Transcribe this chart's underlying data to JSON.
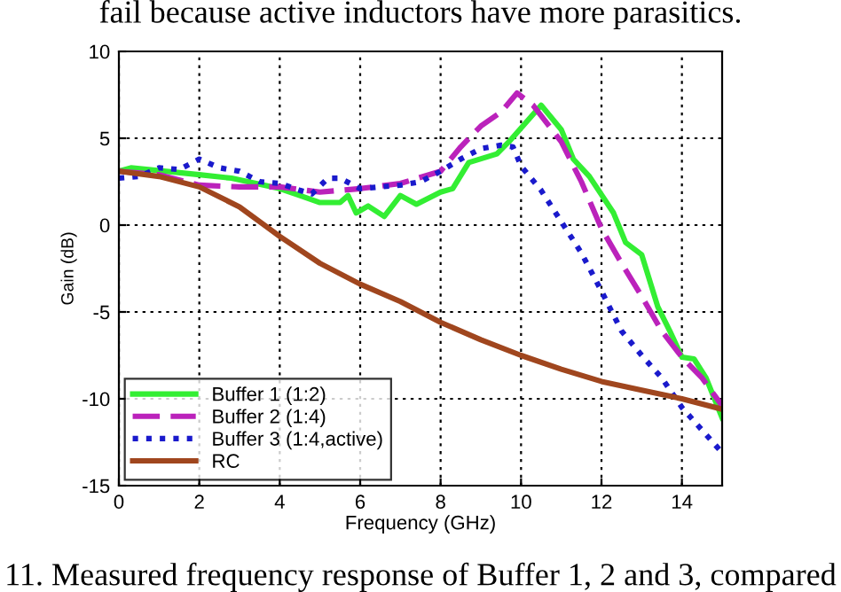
{
  "chart_data": {
    "type": "line",
    "xlabel": "Frequency (GHz)",
    "ylabel": "Gain (dB)",
    "xlim": [
      0,
      15
    ],
    "ylim": [
      -15,
      10
    ],
    "xticks": [
      0,
      2,
      4,
      6,
      8,
      10,
      12,
      14
    ],
    "yticks": [
      -15,
      -10,
      -5,
      0,
      5,
      10
    ],
    "grid": true,
    "legend": "bottom left",
    "annotations": [
      "fail because active inductors have more parasitics.",
      "11. Measured frequency response of Buffer 1, 2 and 3, compared"
    ],
    "series": [
      {
        "name": "Buffer 1 (1:2)",
        "color": "#33ee33",
        "line_style": "solid",
        "x": [
          0,
          0.3,
          2,
          2.8,
          4,
          4.5,
          5,
          5.5,
          5.7,
          5.9,
          6.2,
          6.6,
          7,
          7.4,
          8,
          8.3,
          8.7,
          9.4,
          9.7,
          10.5,
          11,
          11.3,
          11.7,
          12.3,
          12.6,
          13,
          13.4,
          13.7,
          14,
          14.3,
          14.6,
          15
        ],
        "values": [
          3.1,
          3.3,
          2.9,
          2.7,
          2.1,
          1.7,
          1.3,
          1.3,
          1.7,
          0.7,
          1.1,
          0.5,
          1.7,
          1.2,
          1.9,
          2.1,
          3.6,
          4.1,
          4.8,
          6.9,
          5.5,
          3.8,
          2.8,
          0.7,
          -1.0,
          -1.7,
          -4.7,
          -6.1,
          -7.6,
          -7.7,
          -8.8,
          -11.1
        ]
      },
      {
        "name": "Buffer 2 (1:4)",
        "color": "#bb22bb",
        "line_style": "dashed",
        "x": [
          0,
          1,
          2,
          3,
          4,
          5,
          6,
          7,
          8,
          8.5,
          9,
          9.5,
          9.9,
          10.3,
          11,
          11.5,
          12,
          12.5,
          13,
          13.5,
          14,
          14.5,
          15
        ],
        "values": [
          3.1,
          2.9,
          2.3,
          2.2,
          2.2,
          1.9,
          2.1,
          2.4,
          3.1,
          4.5,
          5.7,
          6.5,
          7.6,
          6.9,
          4.8,
          2.5,
          -0.2,
          -2.2,
          -4.1,
          -6.1,
          -7.6,
          -8.8,
          -10.4
        ]
      },
      {
        "name": "Buffer 3 (1:4,active)",
        "color": "#1a1acc",
        "line_style": "dotted",
        "x": [
          0,
          0.5,
          1,
          1.5,
          2,
          2.5,
          3,
          3.5,
          4,
          4.5,
          4.8,
          5.2,
          5.5,
          6,
          6.5,
          7,
          7.5,
          8,
          8.5,
          9,
          9.5,
          9.8,
          10,
          10.5,
          11,
          11.5,
          12,
          12.5,
          13,
          13.5,
          14,
          14.5,
          15
        ],
        "values": [
          2.7,
          2.8,
          3.3,
          3.2,
          3.8,
          3.3,
          3.1,
          2.5,
          2.4,
          2.0,
          1.8,
          2.7,
          2.7,
          2.1,
          2.2,
          2.3,
          2.5,
          3.1,
          3.8,
          4.4,
          4.6,
          4.5,
          3.4,
          2.0,
          0.2,
          -1.6,
          -3.8,
          -6.1,
          -7.5,
          -8.8,
          -10.5,
          -11.8,
          -13.1
        ]
      },
      {
        "name": "RC",
        "color": "#a0461e",
        "line_style": "solid",
        "x": [
          0,
          1,
          2,
          3,
          4,
          5,
          6,
          7,
          8,
          9,
          10,
          11,
          12,
          13,
          14,
          15
        ],
        "values": [
          3.1,
          2.8,
          2.2,
          1.05,
          -0.65,
          -2.2,
          -3.4,
          -4.4,
          -5.6,
          -6.6,
          -7.5,
          -8.3,
          -9.0,
          -9.5,
          -10.0,
          -10.6
        ]
      }
    ]
  }
}
